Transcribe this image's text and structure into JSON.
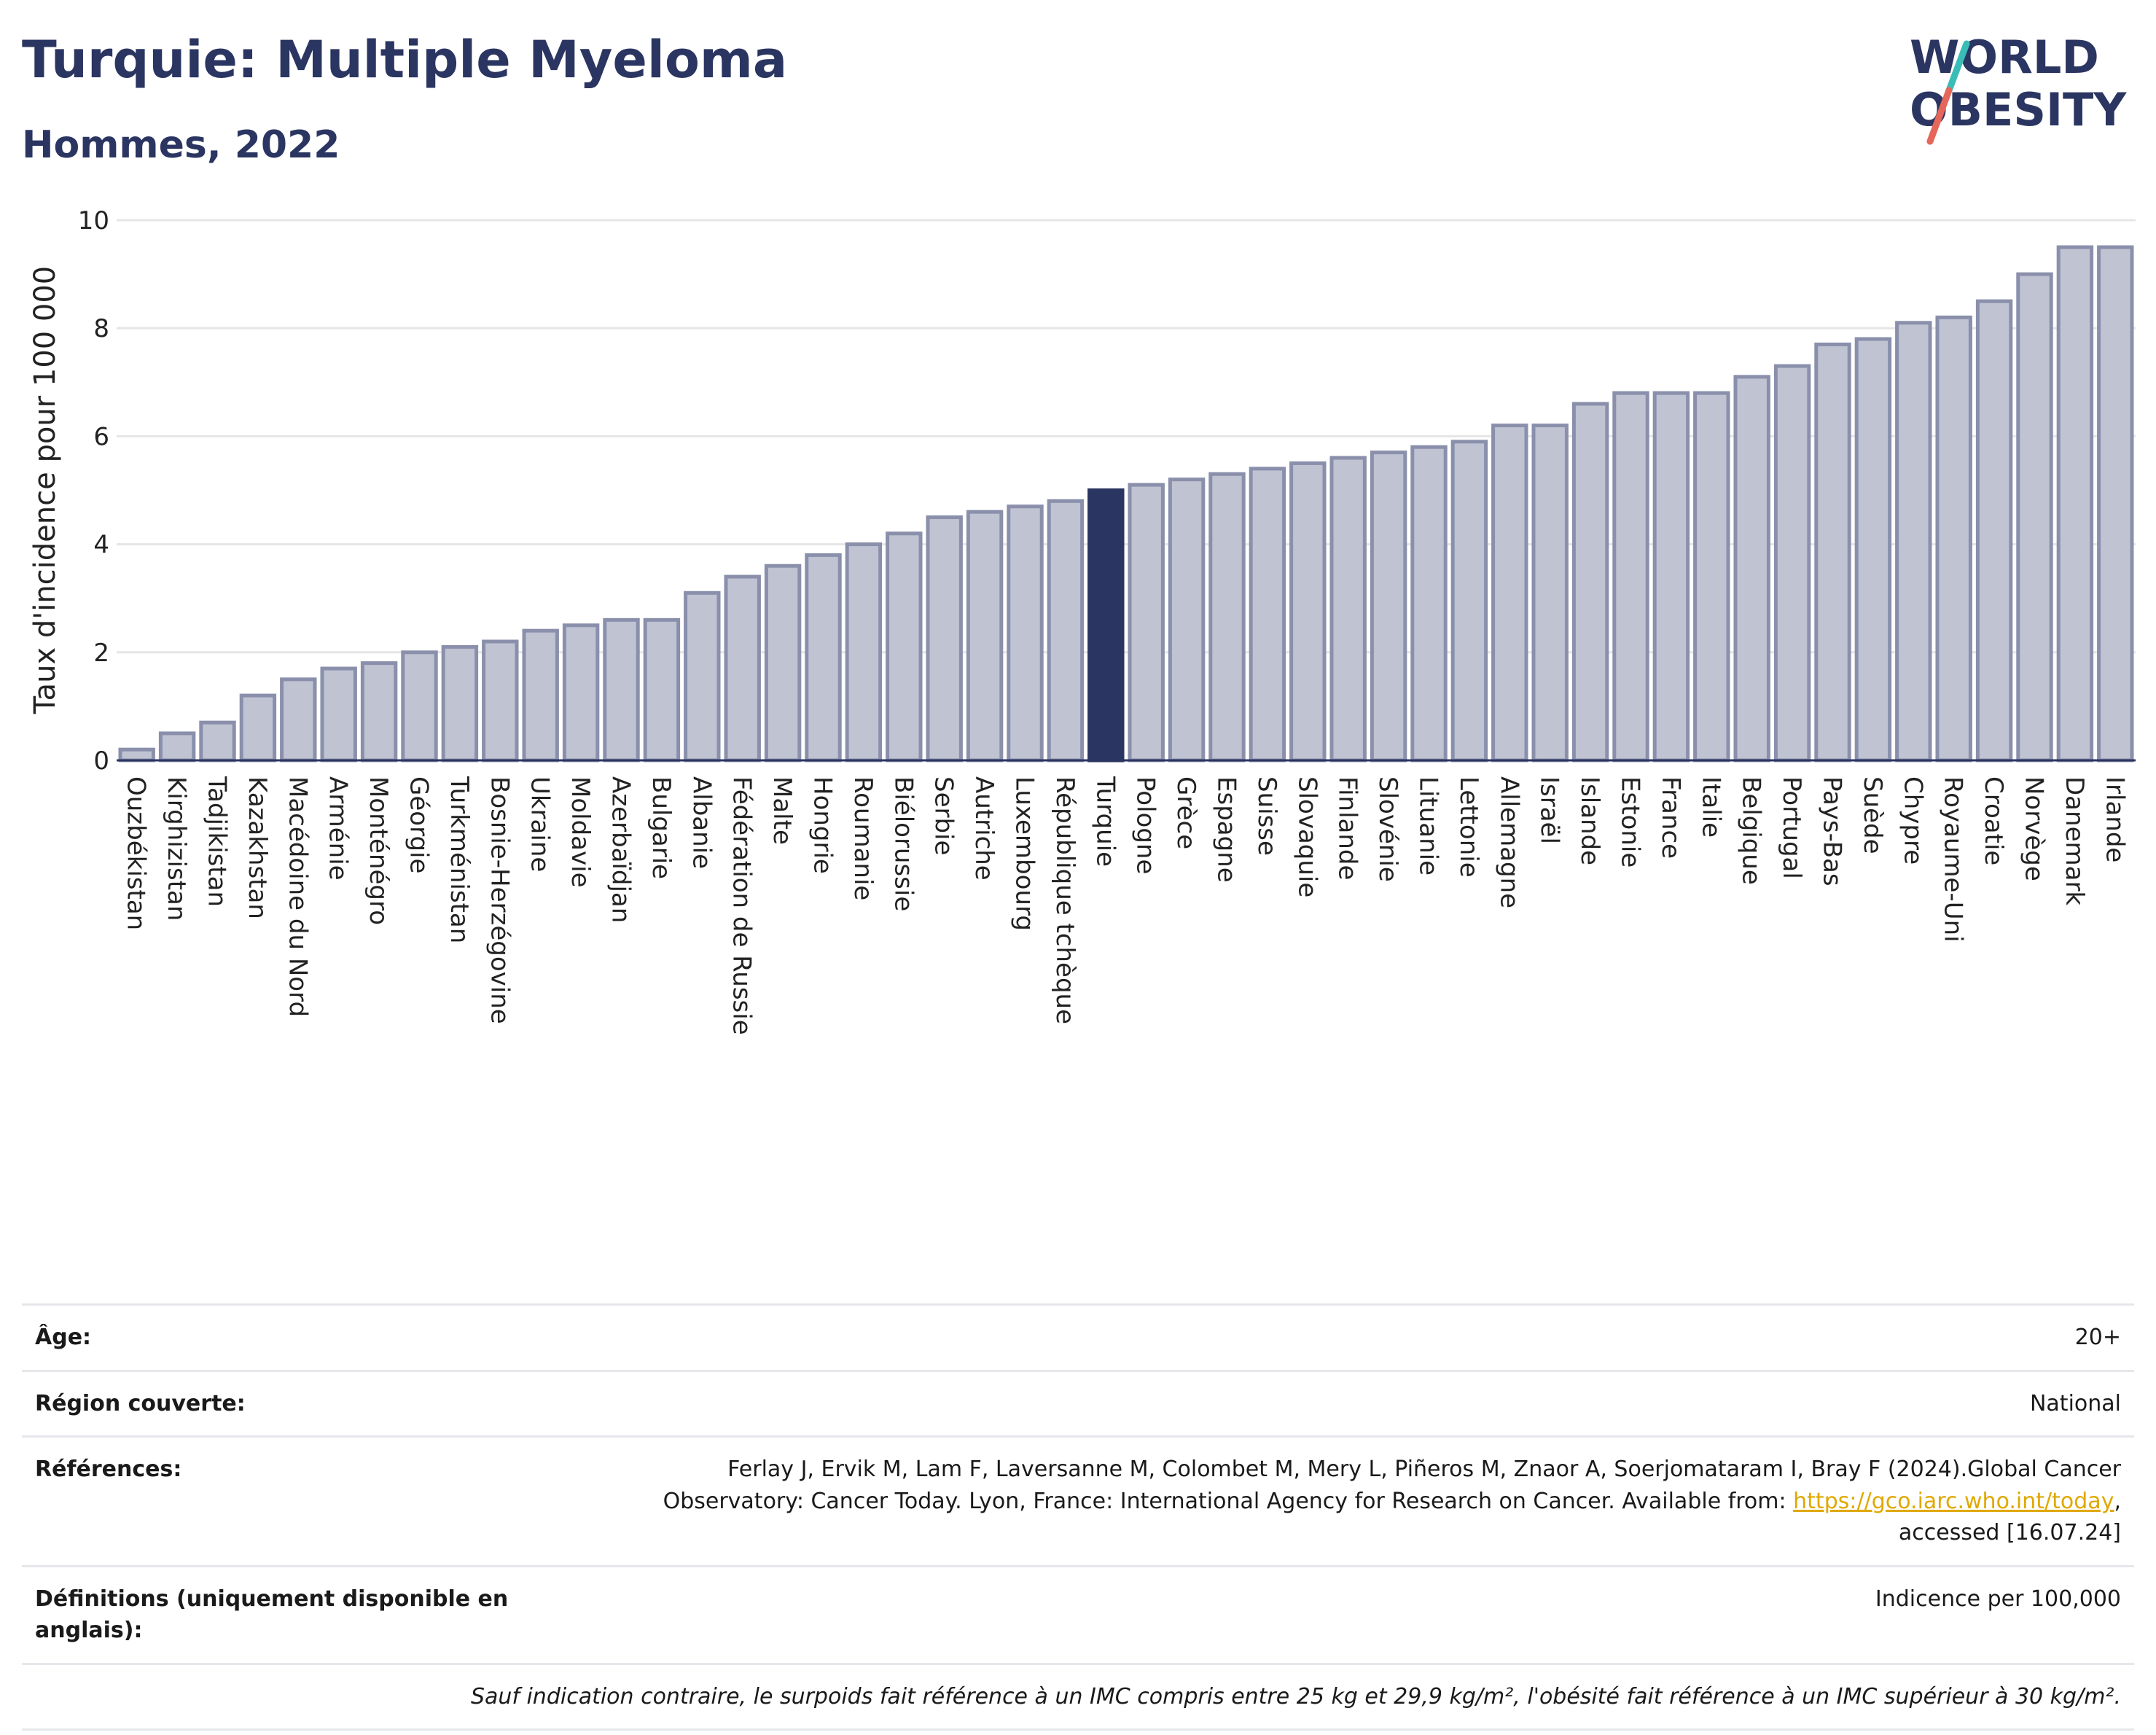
{
  "title": "Turquie: Multiple Myeloma",
  "subtitle": "Hommes, 2022",
  "logo": {
    "line1": "WORLD",
    "line2": "OBESITY"
  },
  "colors": {
    "bar": "#bfc3d2",
    "bar_border": "#8a90ab",
    "highlight": "#2b3561",
    "grid": "#e6e6e6",
    "axis": "#2b3561"
  },
  "chart_data": {
    "type": "bar",
    "ylabel": "Taux d'incidence pour 100 000",
    "ylim": [
      0,
      10
    ],
    "yticks": [
      "0",
      "2",
      "4",
      "6",
      "8",
      "10"
    ],
    "highlight": "Turquie",
    "categories": [
      "Ouzbékistan",
      "Kirghizistan",
      "Tadjikistan",
      "Kazakhstan",
      "Macédoine du Nord",
      "Arménie",
      "Monténégro",
      "Géorgie",
      "Turkménistan",
      "Bosnie-Herzégovine",
      "Ukraine",
      "Moldavie",
      "Azerbaïdjan",
      "Bulgarie",
      "Albanie",
      "Fédération de Russie",
      "Malte",
      "Hongrie",
      "Roumanie",
      "Biélorussie",
      "Serbie",
      "Autriche",
      "Luxembourg",
      "République tchèque",
      "Turquie",
      "Pologne",
      "Grèce",
      "Espagne",
      "Suisse",
      "Slovaquie",
      "Finlande",
      "Slovénie",
      "Lituanie",
      "Lettonie",
      "Allemagne",
      "Israël",
      "Islande",
      "Estonie",
      "France",
      "Italie",
      "Belgique",
      "Portugal",
      "Pays-Bas",
      "Suède",
      "Chypre",
      "Royaume-Uni",
      "Croatie",
      "Norvège",
      "Danemark",
      "Irlande"
    ],
    "values": [
      0.2,
      0.5,
      0.7,
      1.2,
      1.5,
      1.7,
      1.8,
      2.0,
      2.1,
      2.2,
      2.4,
      2.5,
      2.6,
      2.6,
      3.1,
      3.4,
      3.6,
      3.8,
      4.0,
      4.2,
      4.5,
      4.6,
      4.7,
      4.8,
      5.0,
      5.1,
      5.2,
      5.3,
      5.4,
      5.5,
      5.6,
      5.7,
      5.8,
      5.9,
      6.2,
      6.2,
      6.6,
      6.8,
      6.8,
      6.8,
      7.1,
      7.3,
      7.7,
      7.8,
      8.1,
      8.2,
      8.5,
      9.0,
      9.5,
      9.5
    ]
  },
  "info": {
    "age_label": "Âge:",
    "age_value": "20+",
    "region_label": "Région couverte:",
    "region_value": "National",
    "refs_label": "Références:",
    "refs_text1": "Ferlay J, Ervik M, Lam F, Laversanne M, Colombet M, Mery L, Piñeros M, Znaor A, Soerjomataram I, Bray F (2024).Global Cancer",
    "refs_text2": "Observatory: Cancer Today. Lyon, France: International Agency for Research on Cancer. Available from: ",
    "refs_link": "https://gco.iarc.who.int/today",
    "refs_text3": ",",
    "refs_text4": "accessed [16.07.24]",
    "defs_label": "Définitions (uniquement disponible en anglais):",
    "defs_value": "Indicence per 100,000",
    "note": "Sauf indication contraire, le surpoids fait référence à un IMC compris entre 25 kg et 29,9 kg/m², l'obésité fait référence à un IMC supérieur à 30 kg/m²."
  }
}
